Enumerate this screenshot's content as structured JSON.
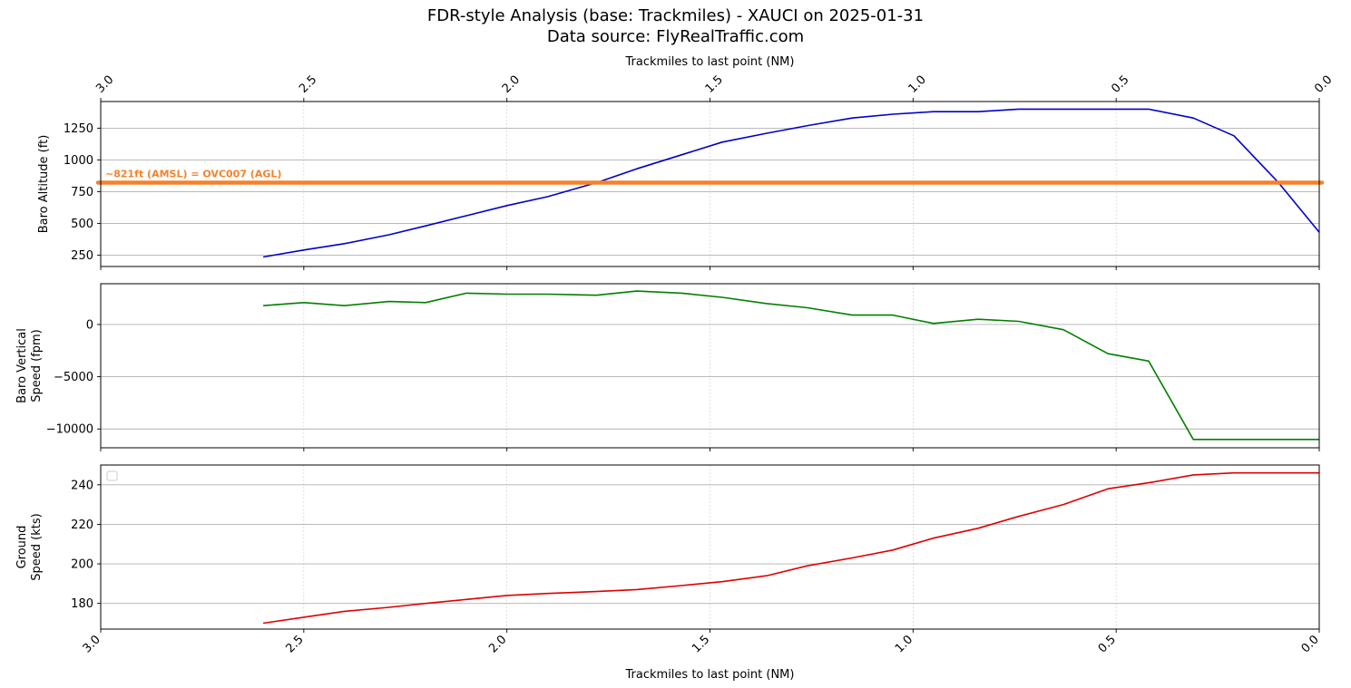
{
  "title_line1": "FDR-style Analysis (base: Trackmiles) - XAUCI on 2025-01-31",
  "title_line2": "Data source: FlyRealTraffic.com",
  "chart_data": [
    {
      "type": "line",
      "panel": "top",
      "top_xlabel": "Trackmiles to last point (NM)",
      "ylabel": "Baro Altitude (ft)",
      "xlim": [
        3.0,
        0.0
      ],
      "ylim": [
        160,
        1460
      ],
      "xticks": [
        "3.0",
        "2.5",
        "2.0",
        "1.5",
        "1.0",
        "0.5",
        "0.0"
      ],
      "yticks": [
        250,
        500,
        750,
        1000,
        1250
      ],
      "grid": "y-major, x-dotted",
      "series": [
        {
          "color": "#0000cc",
          "x": [
            2.6,
            2.5,
            2.4,
            2.29,
            2.2,
            2.1,
            2.0,
            1.9,
            1.78,
            1.68,
            1.57,
            1.47,
            1.36,
            1.26,
            1.15,
            1.05,
            0.95,
            0.84,
            0.74,
            0.63,
            0.52,
            0.42,
            0.31,
            0.21,
            0.1,
            0.0
          ],
          "y": [
            235,
            290,
            340,
            410,
            480,
            560,
            640,
            710,
            820,
            930,
            1040,
            1140,
            1210,
            1270,
            1330,
            1360,
            1380,
            1380,
            1400,
            1400,
            1400,
            1400,
            1330,
            1190,
            820,
            430
          ]
        }
      ],
      "reference_line": {
        "y": 821,
        "label": "~821ft (AMSL) = OVC007 (AGL)",
        "color": "#f5812a"
      }
    },
    {
      "type": "line",
      "panel": "middle",
      "ylabel_line1": "Baro Vertical",
      "ylabel_line2": "Speed (fpm)",
      "xlim": [
        3.0,
        0.0
      ],
      "ylim": [
        -11800,
        3900
      ],
      "yticks": [
        0,
        -5000,
        -10000
      ],
      "grid": "y-major, x-dotted",
      "series": [
        {
          "color": "#008000",
          "x": [
            2.6,
            2.5,
            2.4,
            2.29,
            2.2,
            2.1,
            2.0,
            1.9,
            1.78,
            1.68,
            1.57,
            1.47,
            1.36,
            1.26,
            1.15,
            1.05,
            0.95,
            0.84,
            0.74,
            0.63,
            0.52,
            0.42,
            0.31,
            0.21,
            0.1,
            0.0
          ],
          "y": [
            1800,
            2100,
            1800,
            2200,
            2100,
            3000,
            2900,
            2900,
            2800,
            3200,
            3000,
            2600,
            2000,
            1600,
            900,
            900,
            100,
            500,
            300,
            -500,
            -2800,
            -3500,
            -11000,
            -11000,
            -11000,
            -11000
          ]
        }
      ]
    },
    {
      "type": "line",
      "panel": "bottom",
      "ylabel_line1": "Ground",
      "ylabel_line2": "Speed (kts)",
      "xlabel": "Trackmiles to last point (NM)",
      "xlim": [
        3.0,
        0.0
      ],
      "ylim": [
        167,
        250
      ],
      "yticks": [
        180,
        200,
        220,
        240
      ],
      "xticks": [
        "3.0",
        "2.5",
        "2.0",
        "1.5",
        "1.0",
        "0.5",
        "0.0"
      ],
      "grid": "y-major, x-dotted",
      "legend": "top-left (empty)",
      "series": [
        {
          "color": "#e00000",
          "x": [
            2.6,
            2.5,
            2.4,
            2.29,
            2.2,
            2.1,
            2.0,
            1.9,
            1.78,
            1.68,
            1.57,
            1.47,
            1.36,
            1.26,
            1.15,
            1.05,
            0.95,
            0.84,
            0.74,
            0.63,
            0.52,
            0.42,
            0.31,
            0.21,
            0.1,
            0.0
          ],
          "y": [
            170,
            173,
            176,
            178,
            180,
            182,
            184,
            185,
            186,
            187,
            189,
            191,
            194,
            199,
            203,
            207,
            213,
            218,
            224,
            230,
            238,
            241,
            245,
            246,
            246,
            246
          ]
        }
      ]
    }
  ]
}
